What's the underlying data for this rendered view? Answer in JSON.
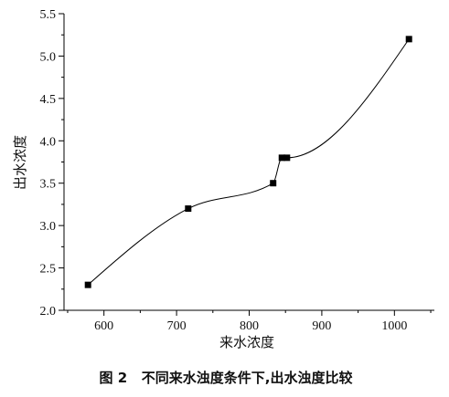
{
  "chart_data": {
    "type": "scatter",
    "line": "smooth",
    "marker": "square",
    "x": [
      578,
      716,
      833,
      845,
      852,
      1020
    ],
    "y": [
      2.3,
      3.2,
      3.5,
      3.8,
      3.8,
      5.2
    ],
    "xlabel": "来水浓度",
    "ylabel": "出水浓度",
    "xlim": [
      545,
      1055
    ],
    "ylim": [
      2.0,
      5.5
    ],
    "xticks": [
      "600",
      "700",
      "800",
      "900",
      "1000"
    ],
    "yticks": [
      "2.0",
      "2.5",
      "3.0",
      "3.5",
      "4.0",
      "4.5",
      "5.0",
      "5.5"
    ],
    "grid": false,
    "colors": {
      "marker": "#000000",
      "line": "#000000",
      "axis": "#000000"
    }
  },
  "caption": "图 2   不同来水浊度条件下,出水浊度比较"
}
